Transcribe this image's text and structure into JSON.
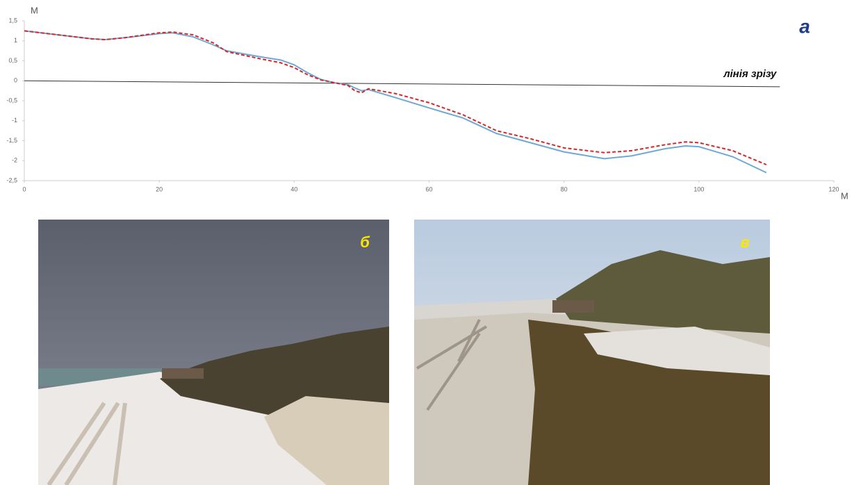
{
  "chart_data": {
    "type": "line",
    "y_label": "М",
    "x_label": "М",
    "panel_label": "а",
    "xlim": [
      0,
      120
    ],
    "xticks": [
      0,
      20,
      40,
      60,
      80,
      100,
      120
    ],
    "ylim": [
      -2.5,
      1.5
    ],
    "yticks": [
      {
        "value": 1.5,
        "label": "1,5"
      },
      1,
      {
        "value": 0.5,
        "label": "0,5"
      },
      0,
      {
        "value": -0.5,
        "label": "-0,5"
      },
      -1,
      {
        "value": -1.5,
        "label": "-1,5"
      },
      -2,
      {
        "value": -2.5,
        "label": "-2,5"
      }
    ],
    "x": [
      0,
      5,
      10,
      12,
      15,
      20,
      22,
      25,
      28,
      30,
      35,
      38,
      40,
      42,
      44,
      46,
      48,
      49,
      50,
      51,
      55,
      60,
      65,
      70,
      75,
      80,
      86,
      90,
      95,
      98,
      100,
      105,
      110
    ],
    "series": [
      {
        "color": "#6fa8d6",
        "dashed": false,
        "values": [
          1.25,
          1.15,
          1.05,
          1.03,
          1.08,
          1.18,
          1.2,
          1.1,
          0.9,
          0.75,
          0.6,
          0.52,
          0.4,
          0.2,
          0.03,
          -0.05,
          -0.1,
          -0.18,
          -0.25,
          -0.22,
          -0.42,
          -0.68,
          -0.93,
          -1.32,
          -1.55,
          -1.78,
          -1.95,
          -1.88,
          -1.7,
          -1.63,
          -1.65,
          -1.9,
          -2.3
        ]
      },
      {
        "color": "#d62728",
        "dashed": true,
        "values": [
          1.25,
          1.15,
          1.05,
          1.03,
          1.08,
          1.2,
          1.22,
          1.15,
          0.95,
          0.73,
          0.55,
          0.45,
          0.33,
          0.15,
          0.02,
          -0.05,
          -0.12,
          -0.25,
          -0.3,
          -0.2,
          -0.32,
          -0.55,
          -0.85,
          -1.25,
          -1.45,
          -1.68,
          -1.8,
          -1.75,
          -1.6,
          -1.53,
          -1.55,
          -1.75,
          -2.1
        ]
      }
    ],
    "cut_line": {
      "label": "лінія зрізу",
      "x": [
        0,
        112
      ],
      "values": [
        0,
        -0.15
      ]
    }
  },
  "photos": [
    {
      "label": "б"
    },
    {
      "label": "в"
    }
  ]
}
